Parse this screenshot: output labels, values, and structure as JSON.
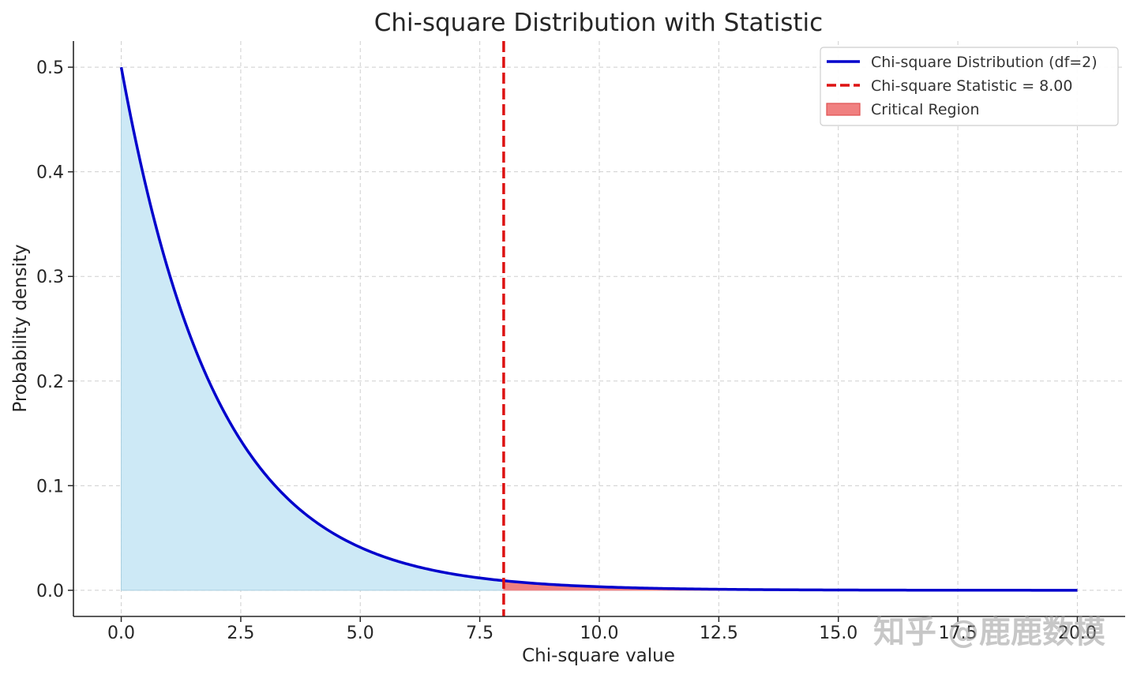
{
  "chart_data": {
    "type": "line",
    "title": "Chi-square Distribution with Statistic",
    "xlabel": "Chi-square value",
    "ylabel": "Probability density",
    "xlim": [
      -1,
      21
    ],
    "ylim": [
      -0.025,
      0.525
    ],
    "xticks": [
      0,
      2.5,
      5,
      7.5,
      10,
      12.5,
      15,
      17.5,
      20
    ],
    "xtick_labels": [
      "0.0",
      "2.5",
      "5.0",
      "7.5",
      "10.0",
      "12.5",
      "15.0",
      "17.5",
      "20.0"
    ],
    "yticks": [
      0,
      0.1,
      0.2,
      0.3,
      0.4,
      0.5
    ],
    "ytick_labels": [
      "0.0",
      "0.1",
      "0.2",
      "0.3",
      "0.4",
      "0.5"
    ],
    "grid": true,
    "legend_position": "top-right",
    "df": 2,
    "statistic": 8.0,
    "series": [
      {
        "name": "Chi-square Distribution (df=2)",
        "color": "#0000cc",
        "x": [
          0,
          0.5,
          1,
          1.5,
          2,
          2.5,
          3,
          3.5,
          4,
          4.5,
          5,
          5.5,
          6,
          6.5,
          7,
          7.5,
          8,
          8.5,
          9,
          9.5,
          10,
          11,
          12,
          13,
          14,
          15,
          16,
          17,
          18,
          19,
          20
        ],
        "y": [
          0.5,
          0.3894,
          0.3033,
          0.2362,
          0.1839,
          0.1433,
          0.1116,
          0.0869,
          0.0677,
          0.0527,
          0.041,
          0.032,
          0.0249,
          0.0194,
          0.0151,
          0.0118,
          0.0092,
          0.0071,
          0.0056,
          0.0043,
          0.0034,
          0.002,
          0.0012,
          0.0008,
          0.0005,
          0.0003,
          0.0002,
          0.0001,
          0.0001,
          0.0,
          0.0
        ]
      }
    ],
    "vline": {
      "name": "Chi-square Statistic = 8.00",
      "x": 8.0,
      "color": "#dd1111",
      "style": "dashed"
    },
    "region": {
      "name": "Critical Region",
      "from": 8.0,
      "to": 20.0,
      "color": "#f08080"
    },
    "fill_color": "#cde9f6"
  },
  "watermark": "知乎 @鹿鹿数模"
}
